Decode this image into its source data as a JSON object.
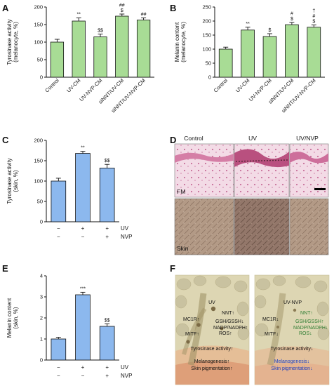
{
  "panels": {
    "A": "A",
    "B": "B",
    "C": "C",
    "D": "D",
    "E": "E",
    "F": "F"
  },
  "colors": {
    "green_bar": "#a8dc95",
    "blue_bar": "#8cb8ee",
    "axis": "#111111",
    "diagram_bg": "#ddd6b3",
    "diagram_green_text": "#2e7d32",
    "diagram_blue_text": "#1f3fbf"
  },
  "chart_data": [
    {
      "id": "A",
      "type": "bar",
      "ylabel": [
        "Tyrosinase activity",
        "(melanocyte, %)"
      ],
      "ylim": [
        0,
        200
      ],
      "yticks": [
        0,
        50,
        100,
        150,
        200
      ],
      "categories": [
        "Control",
        "UV-CM",
        "UV-NVP-CM",
        "siNNT/UV-CM",
        "siNNT/UV-NVP-CM"
      ],
      "values": [
        100,
        160,
        115,
        174,
        163
      ],
      "errors": [
        8,
        9,
        8,
        6,
        6
      ],
      "annotations": [
        [],
        [
          "**"
        ],
        [
          "$$"
        ],
        [
          "##",
          "$"
        ],
        [
          "##"
        ]
      ]
    },
    {
      "id": "B",
      "type": "bar",
      "ylabel": [
        "Melanin content",
        "(melanocyte, %)"
      ],
      "ylim": [
        0,
        250
      ],
      "yticks": [
        0,
        50,
        100,
        150,
        200,
        250
      ],
      "categories": [
        "Control",
        "UV-CM",
        "UV-NVP-CM",
        "siNNT/UV-CM",
        "siNNT/UV-NVP-CM"
      ],
      "values": [
        100,
        168,
        145,
        187,
        178
      ],
      "errors": [
        7,
        10,
        10,
        8,
        8
      ],
      "annotations": [
        [],
        [
          "**"
        ],
        [
          "$"
        ],
        [
          "#",
          "$"
        ],
        [
          "†",
          "#",
          "$"
        ]
      ]
    },
    {
      "id": "C",
      "type": "bar",
      "ylabel": [
        "Tyrosinase activity",
        "(skin, %)"
      ],
      "ylim": [
        0,
        200
      ],
      "yticks": [
        0,
        50,
        100,
        150,
        200
      ],
      "categories": [
        "",
        "",
        ""
      ],
      "values": [
        100,
        168,
        132
      ],
      "errors": [
        7,
        5,
        9
      ],
      "annotations": [
        [],
        [
          "**"
        ],
        [
          "$$"
        ]
      ],
      "treatments": [
        {
          "name": "UV",
          "marks": [
            "−",
            "+",
            "+"
          ]
        },
        {
          "name": "NVP",
          "marks": [
            "−",
            "−",
            "+"
          ]
        }
      ]
    },
    {
      "id": "E",
      "type": "bar",
      "ylabel": [
        "Melanin content",
        "(skin, %)"
      ],
      "ylim": [
        0,
        4
      ],
      "yticks": [
        0,
        1,
        2,
        3,
        4
      ],
      "categories": [
        "",
        "",
        ""
      ],
      "values": [
        1.0,
        3.1,
        1.6
      ],
      "errors": [
        0.08,
        0.12,
        0.12
      ],
      "annotations": [
        [],
        [
          "***"
        ],
        [
          "$$"
        ]
      ],
      "treatments": [
        {
          "name": "UV",
          "marks": [
            "−",
            "+",
            "+"
          ]
        },
        {
          "name": "NVP",
          "marks": [
            "−",
            "−",
            "+"
          ]
        }
      ]
    }
  ],
  "panel_d": {
    "columns": [
      "Control",
      "UV",
      "UV/NVP"
    ],
    "row_labels": [
      "FM",
      "Skin"
    ]
  },
  "panel_f": {
    "left": {
      "title": "UV",
      "items": [
        "NNT↑",
        "MC1R↑",
        "GSH/GSSH↓",
        "NADP/NADPH↑",
        "MITF↑",
        "ROS↑",
        "Tyrosinase activity↑",
        "Melanogenesis↑",
        "Skin pigmentation↑"
      ]
    },
    "right": {
      "title": "UV-NVP",
      "items": [
        "NNT↑",
        "MC1R↓",
        "GSH/GSSH↑",
        "NADP/NADPH↓",
        "MITF↓",
        "ROS↓",
        "Tyrosinase activity↓",
        "Melanogenesis↓",
        "Skin pigmentation↓"
      ]
    }
  }
}
